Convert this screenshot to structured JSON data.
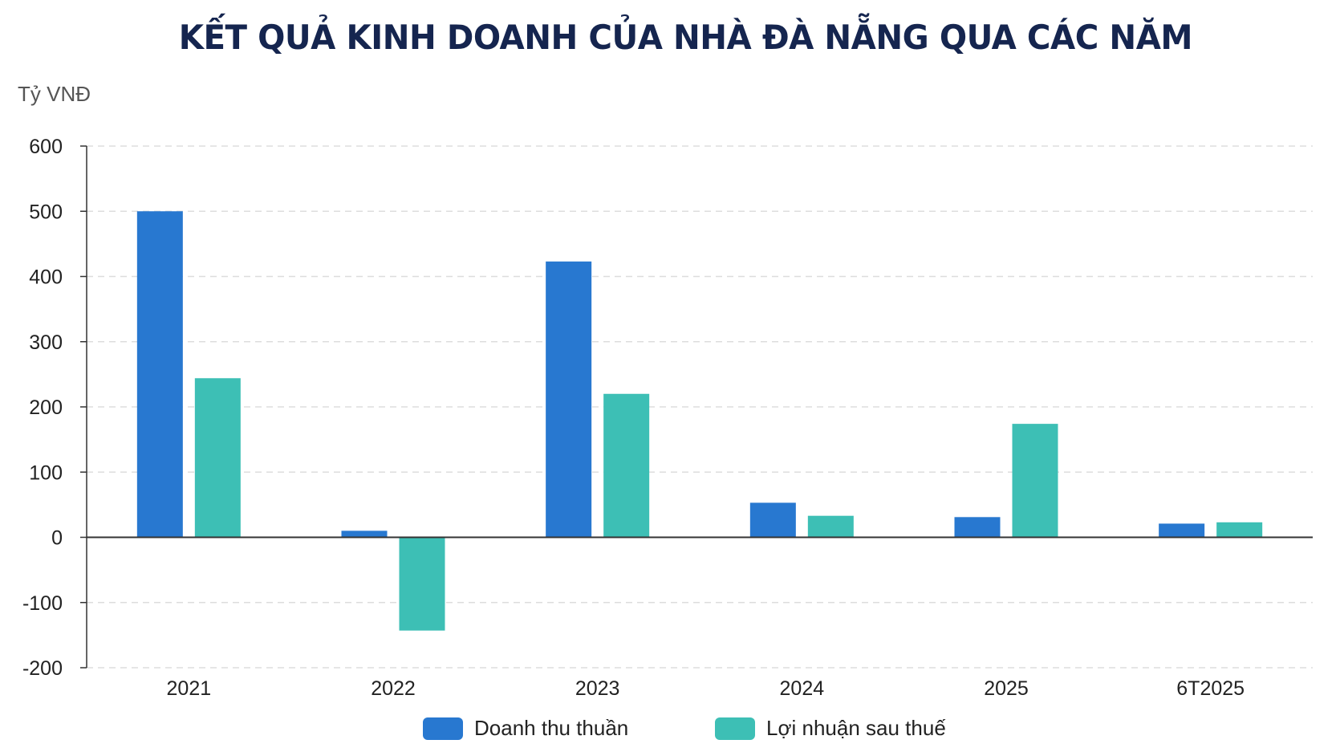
{
  "title": "KẾT QUẢ KINH DOANH CỦA NHÀ ĐÀ NẴNG QUA CÁC NĂM",
  "colors": {
    "revenue": "#2878d0",
    "profit": "#3dbfb5",
    "axis": "#333333",
    "grid": "#dddddd",
    "title": "#15254f"
  },
  "chart_data": {
    "type": "bar",
    "ylabel": "Tỷ VNĐ",
    "ylim": [
      -200,
      600
    ],
    "yticks": [
      600,
      500,
      400,
      300,
      200,
      100,
      0,
      -100,
      -200
    ],
    "grid": true,
    "legend_position": "bottom-center",
    "categories": [
      "2021",
      "2022",
      "2023",
      "2024",
      "2025",
      "6T2025"
    ],
    "series": [
      {
        "name": "Doanh thu thuần",
        "values": [
          500,
          10,
          423,
          53,
          31,
          21
        ]
      },
      {
        "name": "Lợi nhuận sau thuế",
        "values": [
          244,
          -143,
          220,
          33,
          174,
          23
        ]
      }
    ]
  }
}
